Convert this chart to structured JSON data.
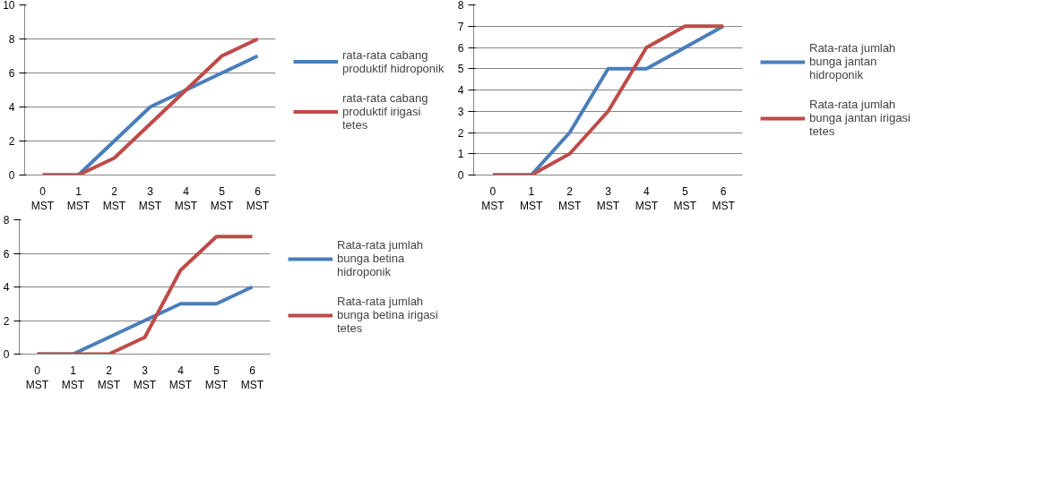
{
  "chart_data": [
    {
      "type": "line",
      "categories": [
        "0 MST",
        "1 MST",
        "2 MST",
        "3 MST",
        "4 MST",
        "5 MST",
        "6 MST"
      ],
      "ylim": [
        0,
        10
      ],
      "yticks": [
        0,
        2,
        4,
        6,
        8,
        10
      ],
      "grid": "y",
      "legend": "right",
      "marker": "none",
      "series": [
        {
          "name": "rata-rata cabang produktif hidroponik",
          "color": "#4a7ebb",
          "values": [
            0,
            0,
            2,
            4,
            5,
            6,
            7
          ]
        },
        {
          "name": "rata-rata cabang produktif irigasi tetes",
          "color": "#be4b48",
          "values": [
            0,
            0,
            1,
            3,
            5,
            7,
            8
          ]
        }
      ]
    },
    {
      "type": "line",
      "categories": [
        "0 MST",
        "1 MST",
        "2 MST",
        "3 MST",
        "4 MST",
        "5 MST",
        "6 MST"
      ],
      "ylim": [
        0,
        8
      ],
      "yticks": [
        0,
        1,
        2,
        3,
        4,
        5,
        6,
        7,
        8
      ],
      "grid": "y",
      "legend": "right",
      "marker": "none",
      "series": [
        {
          "name": "Rata-rata jumlah bunga jantan hidroponik",
          "color": "#4a7ebb",
          "values": [
            0,
            0,
            2,
            5,
            5,
            6,
            7
          ]
        },
        {
          "name": "Rata-rata jumlah bunga jantan irigasi tetes",
          "color": "#be4b48",
          "values": [
            0,
            0,
            1,
            3,
            6,
            7,
            7
          ]
        }
      ]
    },
    {
      "type": "line",
      "categories": [
        "0 MST",
        "1 MST",
        "2 MST",
        "3 MST",
        "4 MST",
        "5 MST",
        "6 MST"
      ],
      "ylim": [
        0,
        8
      ],
      "yticks": [
        0,
        2,
        4,
        6,
        8
      ],
      "grid": "y",
      "legend": "right",
      "marker": "none",
      "series": [
        {
          "name": "Rata-rata jumlah bunga betina hidroponik",
          "color": "#4a7ebb",
          "values": [
            0,
            0,
            1,
            2,
            3,
            3,
            4
          ]
        },
        {
          "name": "Rata-rata jumlah bunga betina irigasi tetes",
          "color": "#be4b48",
          "values": [
            0,
            0,
            0,
            1,
            5,
            7,
            7
          ]
        }
      ]
    }
  ]
}
